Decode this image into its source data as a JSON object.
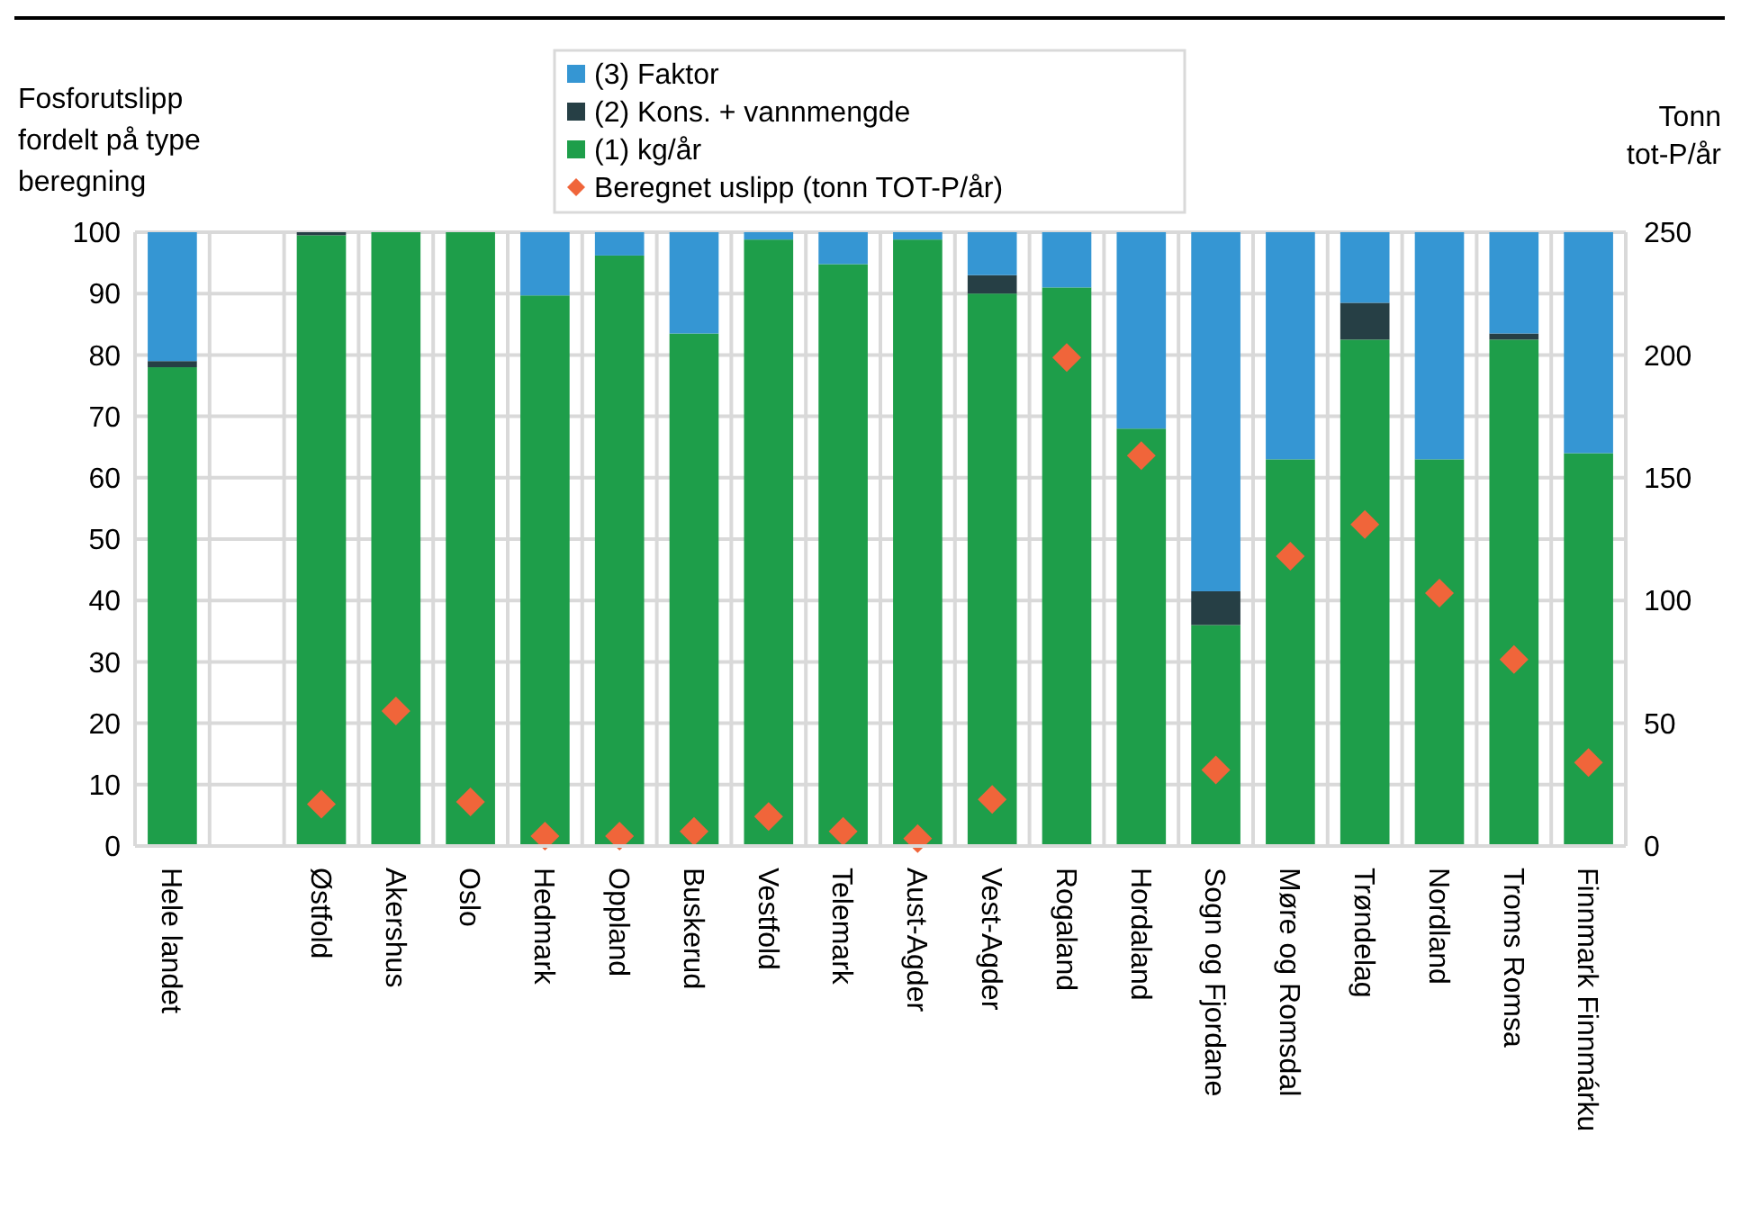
{
  "chart_data": {
    "type": "bar",
    "stacked": true,
    "ylabel": "Fosforutslipp\nfordelt på type\nberegning",
    "y2label": "Tonn\ntot-P/år",
    "categories": [
      "Hele landet",
      null,
      "Østfold",
      "Akershus",
      "Oslo",
      "Hedmark",
      "Oppland",
      "Buskerud",
      "Vestfold",
      "Telemark",
      "Aust-Agder",
      "Vest-Agder",
      "Rogaland",
      "Hordaland",
      "Sogn og Fjordane",
      "Møre og Romsdal",
      "Trøndelag",
      "Nordland",
      "Troms Romsa",
      "Finnmark Finnmárku"
    ],
    "series": [
      {
        "name": "(1) kg/år",
        "color": "#1e9e4a",
        "values": [
          78,
          null,
          99.5,
          100,
          100,
          89.7,
          96.2,
          83.5,
          98.8,
          94.8,
          98.8,
          90,
          91,
          68,
          36,
          63,
          82.5,
          63,
          82.5,
          64
        ]
      },
      {
        "name": "(2) Kons. + vannmengde",
        "color": "#263f45",
        "values": [
          1,
          null,
          0.5,
          0,
          0,
          0,
          0,
          0,
          0,
          0,
          0,
          3,
          0,
          0,
          5.5,
          0,
          6,
          0,
          1,
          0
        ]
      },
      {
        "name": "(3) Faktor",
        "color": "#3596d3",
        "values": [
          21,
          null,
          0,
          0,
          0,
          10.3,
          3.8,
          16.5,
          1.2,
          5.2,
          1.2,
          7,
          9,
          32,
          58.5,
          37,
          11.5,
          37,
          16.5,
          36
        ]
      },
      {
        "name": "Beregnet uslipp (tonn TOT-P/år)",
        "type": "scatter",
        "axis": "y2",
        "marker": "diamond",
        "color": "#f0653a",
        "values": [
          null,
          null,
          17,
          55,
          18,
          4,
          4,
          6,
          12,
          6,
          3,
          19,
          199,
          159,
          31,
          118,
          131,
          103,
          76,
          34
        ]
      }
    ],
    "ylim": [
      0,
      100
    ],
    "yticks": [
      0,
      10,
      20,
      30,
      40,
      50,
      60,
      70,
      80,
      90,
      100
    ],
    "y2lim": [
      0,
      250
    ],
    "y2ticks": [
      0,
      50,
      100,
      150,
      200,
      250
    ],
    "grid": true,
    "legend": "top"
  }
}
